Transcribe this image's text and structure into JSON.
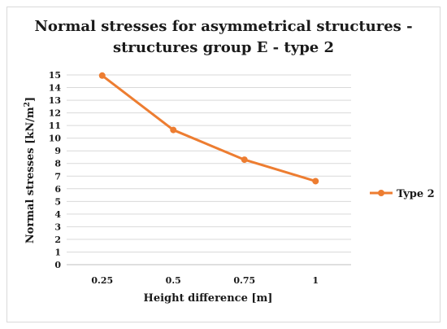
{
  "chart_data": {
    "type": "line",
    "title_lines": [
      "Normal stresses  for asymmetrical structures -",
      "structures group E - type 2"
    ],
    "xlabel": "Height difference [m]",
    "ylabel_main": "Normal stresses [kN/m",
    "ylabel_sup": "2",
    "ylabel_end": "]",
    "categories": [
      "0.25",
      "0.5",
      "0.75",
      "1"
    ],
    "series": [
      {
        "name": "Type 2",
        "values": [
          14.95,
          10.65,
          8.3,
          6.6
        ],
        "color": "#ED7D31"
      }
    ],
    "ylim": [
      0,
      15
    ],
    "ytick_step": 1,
    "grid": true,
    "legend_position": "right"
  }
}
